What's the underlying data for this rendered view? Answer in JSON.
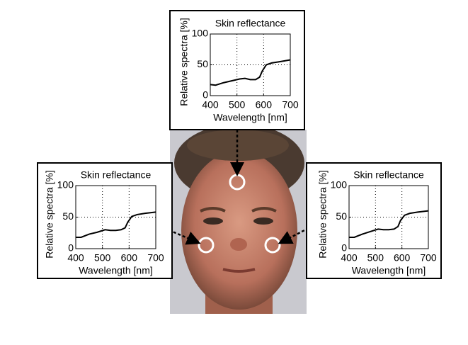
{
  "chart_data": [
    {
      "type": "line",
      "title": "Skin reflectance",
      "x_label": "Wavelength [nm]",
      "y_label": "Relative spectra [%]",
      "x": [
        400,
        420,
        450,
        480,
        510,
        530,
        550,
        570,
        585,
        595,
        610,
        630,
        660,
        700
      ],
      "values": [
        18,
        17,
        21,
        24,
        27,
        28,
        26,
        26,
        30,
        40,
        50,
        53,
        55,
        58
      ],
      "color": "#000000",
      "xlim": [
        400,
        700
      ],
      "ylim": [
        0,
        100
      ],
      "xticks": [
        400,
        500,
        600,
        700
      ],
      "yticks": [
        0,
        50,
        100
      ],
      "grid": true
    },
    {
      "type": "line",
      "title": "Skin reflectance",
      "x_label": "Wavelength [nm]",
      "y_label": "Relative spectra [%]",
      "x": [
        400,
        420,
        450,
        480,
        510,
        530,
        550,
        570,
        585,
        595,
        610,
        630,
        660,
        700
      ],
      "values": [
        18,
        18,
        23,
        26,
        30,
        29,
        29,
        30,
        33,
        42,
        51,
        54,
        56,
        58
      ],
      "color": "#000000",
      "xlim": [
        400,
        700
      ],
      "ylim": [
        0,
        100
      ],
      "xticks": [
        400,
        500,
        600,
        700
      ],
      "yticks": [
        0,
        50,
        100
      ],
      "grid": true
    },
    {
      "type": "line",
      "title": "Skin reflectance",
      "x_label": "Wavelength [nm]",
      "y_label": "Relative spectra [%]",
      "x": [
        400,
        420,
        450,
        480,
        510,
        530,
        550,
        570,
        585,
        595,
        610,
        630,
        660,
        700
      ],
      "values": [
        18,
        18,
        23,
        27,
        31,
        30,
        30,
        31,
        35,
        45,
        53,
        56,
        58,
        60
      ],
      "color": "#000000",
      "xlim": [
        400,
        700
      ],
      "ylim": [
        0,
        100
      ],
      "xticks": [
        400,
        500,
        600,
        700
      ],
      "yticks": [
        0,
        50,
        100
      ],
      "grid": true
    }
  ]
}
